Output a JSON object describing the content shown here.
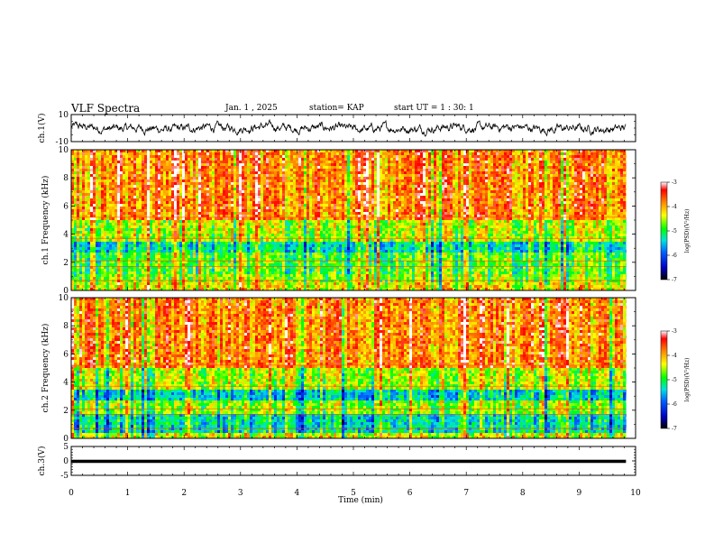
{
  "header": {
    "title": "VLF Spectra",
    "date": "Jan. 1 , 2025",
    "station": "station= KAP",
    "start": "start UT = 1 : 30: 1"
  },
  "chart_data": [
    {
      "type": "line",
      "title": "ch.1 waveform",
      "ylabel": "ch.1(V)",
      "ylim": [
        -10,
        10
      ],
      "yticks": [
        -10,
        10
      ],
      "xlim": [
        0,
        10
      ],
      "x_extent_min": [
        0,
        9.83
      ],
      "description_values": "noisy waveform fluctuating roughly between -4 and +4 V"
    },
    {
      "type": "heatmap",
      "title": "ch.1 spectrogram",
      "ylabel": "ch.1 Frequency (kHz)",
      "ylim": [
        0,
        10
      ],
      "yticks": [
        0,
        2,
        4,
        6,
        8,
        10
      ],
      "xlim": [
        0,
        10
      ],
      "x_extent_min": [
        0,
        9.83
      ],
      "bands": [
        {
          "f": [
            0,
            0.6
          ],
          "level": -4.3
        },
        {
          "f": [
            0.6,
            1.2
          ],
          "level": -4.6
        },
        {
          "f": [
            1.2,
            2.6
          ],
          "level": -4.8
        },
        {
          "f": [
            2.6,
            3.5
          ],
          "level": -5.3
        },
        {
          "f": [
            3.5,
            5.0
          ],
          "level": -4.5
        },
        {
          "f": [
            5.0,
            10.0
          ],
          "level": -3.8
        }
      ],
      "colorbar": {
        "label": "log(PSD)(V²/Hz)",
        "ticks": [
          -3,
          -4,
          -5,
          -6,
          -7
        ],
        "range": [
          -7,
          -3
        ]
      }
    },
    {
      "type": "heatmap",
      "title": "ch.2 spectrogram",
      "ylabel": "ch.2 Frequency (kHz)",
      "ylim": [
        0,
        10
      ],
      "yticks": [
        0,
        2,
        4,
        6,
        8,
        10
      ],
      "xlim": [
        0,
        10
      ],
      "x_extent_min": [
        0,
        9.83
      ],
      "bands": [
        {
          "f": [
            0,
            0.4
          ],
          "level": -4.4
        },
        {
          "f": [
            0.4,
            1.8
          ],
          "level": -5.3
        },
        {
          "f": [
            1.8,
            2.6
          ],
          "level": -4.6
        },
        {
          "f": [
            2.6,
            3.4
          ],
          "level": -5.4
        },
        {
          "f": [
            3.4,
            5.0
          ],
          "level": -4.5
        },
        {
          "f": [
            5.0,
            10.0
          ],
          "level": -3.8
        }
      ],
      "colorbar": {
        "label": "log(PSD)(V²/Hz)",
        "ticks": [
          -3,
          -4,
          -5,
          -6,
          -7
        ],
        "range": [
          -7,
          -3
        ]
      }
    },
    {
      "type": "line",
      "title": "ch.3 waveform",
      "ylabel": "ch.3(V)",
      "ylim": [
        -5,
        5
      ],
      "yticks": [
        -5,
        0,
        5
      ],
      "xlim": [
        0,
        10
      ],
      "x_extent_min": [
        0,
        9.83
      ],
      "level_band": [
        -0.7,
        0.4
      ],
      "xlabel": "Time (min)",
      "xticks": [
        0,
        1,
        2,
        3,
        4,
        5,
        6,
        7,
        8,
        9,
        10
      ]
    }
  ]
}
